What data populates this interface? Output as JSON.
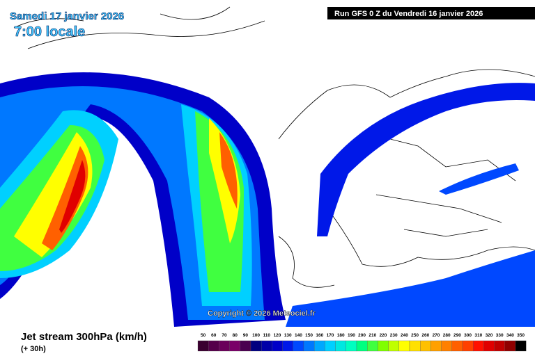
{
  "header": {
    "date": "Samedi 17 janvier 2026",
    "time": "7:00 locale",
    "run": "Run GFS 0 Z du Vendredi 16 janvier 2026"
  },
  "copyright": "Copyright © 2026 Meteociel.fr",
  "footer": {
    "title": "Jet stream 300hPa (km/h)",
    "lead": "(+ 30h)"
  },
  "legend": {
    "labels": [
      50,
      60,
      70,
      80,
      90,
      100,
      110,
      120,
      130,
      140,
      150,
      160,
      170,
      180,
      190,
      200,
      210,
      220,
      230,
      240,
      250,
      260,
      270,
      280,
      290,
      300,
      310,
      320,
      330,
      340,
      350
    ],
    "colors": [
      "#3a0030",
      "#55004a",
      "#6a005a",
      "#7a0068",
      "#4a0050",
      "#000080",
      "#0000a8",
      "#0000c8",
      "#0018e8",
      "#0048ff",
      "#0078ff",
      "#00a8ff",
      "#00d0ff",
      "#00e8e0",
      "#00ffc0",
      "#00ff80",
      "#40ff40",
      "#80ff00",
      "#c0ff00",
      "#ffff00",
      "#ffe000",
      "#ffc000",
      "#ffa000",
      "#ff8000",
      "#ff6000",
      "#ff4000",
      "#ff1000",
      "#e00000",
      "#c00000",
      "#900000",
      "#000000"
    ]
  }
}
